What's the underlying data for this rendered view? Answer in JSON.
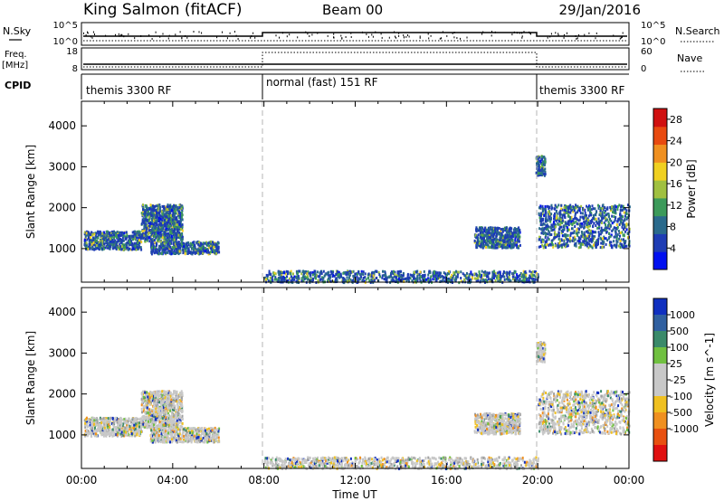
{
  "header": {
    "station": "King Salmon (fitACF)",
    "beam": "Beam 00",
    "date": "29/Jan/2016"
  },
  "status_panels": {
    "nsky_label": "N.Sky",
    "nsky_ticks": [
      "10^5",
      "10^0"
    ],
    "nsearch_label": "N.Search",
    "nsearch_ticks": [
      "10^5",
      "10^0"
    ],
    "freq_label": "Freq.",
    "freq_unit": "[MHz]",
    "freq_ticks": [
      "18",
      "8"
    ],
    "nave_label": "Nave",
    "nave_ticks": [
      "60",
      "0"
    ],
    "cpid_label": "CPID",
    "cpid_segments": [
      {
        "label": "themis 3300 RF",
        "start_hour": 0,
        "end_hour": 8
      },
      {
        "label": "normal (fast) 151 RF",
        "start_hour": 8,
        "end_hour": 20
      },
      {
        "label": "themis 3300 RF",
        "start_hour": 20,
        "end_hour": 24
      }
    ]
  },
  "x_axis": {
    "label": "Time UT",
    "ticks": [
      "00:00",
      "04:00",
      "08:00",
      "12:00",
      "16:00",
      "20:00",
      "00:00"
    ],
    "range_hours": [
      0,
      24
    ]
  },
  "chart_data": [
    {
      "type": "heatmap",
      "parameter": "Power",
      "ylabel": "Slant Range [km]",
      "yticks": [
        "1000",
        "2000",
        "3000",
        "4000"
      ],
      "ylim": [
        180,
        4600
      ],
      "colorbar": {
        "label": "Power [dB]",
        "ticks": [
          "4",
          "8",
          "12",
          "16",
          "20",
          "24",
          "28"
        ],
        "range": [
          0,
          30
        ],
        "colors": [
          "#0010f0",
          "#1e3cb4",
          "#2a6a8c",
          "#3c9a5a",
          "#a0c040",
          "#f0d020",
          "#f09020",
          "#e84a10",
          "#d01010"
        ]
      },
      "echo_regions": [
        {
          "hours": [
            0.1,
            2.6
          ],
          "range_km": [
            1000,
            1450
          ]
        },
        {
          "hours": [
            2.6,
            4.4
          ],
          "range_km": [
            1200,
            2100
          ]
        },
        {
          "hours": [
            3.0,
            6.0
          ],
          "range_km": [
            900,
            1200
          ]
        },
        {
          "hours": [
            8.0,
            20.0
          ],
          "range_km": [
            200,
            480
          ]
        },
        {
          "hours": [
            17.2,
            19.2
          ],
          "range_km": [
            1050,
            1550
          ]
        },
        {
          "hours": [
            19.9,
            20.3
          ],
          "range_km": [
            2800,
            3300
          ]
        },
        {
          "hours": [
            20.0,
            24.0
          ],
          "range_km": [
            1050,
            2100
          ]
        }
      ]
    },
    {
      "type": "heatmap",
      "parameter": "Velocity",
      "ylabel": "Slant Range [km]",
      "yticks": [
        "1000",
        "2000",
        "3000",
        "4000"
      ],
      "ylim": [
        180,
        4600
      ],
      "colorbar": {
        "label": "Velocity [m s^-1]",
        "ticks": [
          "1000",
          "500",
          "100",
          "25",
          "-25",
          "-100",
          "-500",
          "-1000"
        ],
        "colors": [
          "#1030c0",
          "#3060a0",
          "#3a8a6a",
          "#70c040",
          "#c8c8c8",
          "#c8c8c8",
          "#f0c020",
          "#f09020",
          "#e85010",
          "#e01010"
        ]
      },
      "echo_regions": [
        {
          "hours": [
            0.1,
            2.6
          ],
          "range_km": [
            1000,
            1450
          ]
        },
        {
          "hours": [
            2.6,
            4.4
          ],
          "range_km": [
            1200,
            2100
          ]
        },
        {
          "hours": [
            3.0,
            6.0
          ],
          "range_km": [
            850,
            1200
          ]
        },
        {
          "hours": [
            8.0,
            20.0
          ],
          "range_km": [
            200,
            480
          ]
        },
        {
          "hours": [
            17.2,
            19.2
          ],
          "range_km": [
            1050,
            1550
          ]
        },
        {
          "hours": [
            19.9,
            20.3
          ],
          "range_km": [
            2800,
            3300
          ]
        },
        {
          "hours": [
            20.0,
            24.0
          ],
          "range_km": [
            1050,
            2100
          ]
        }
      ]
    }
  ]
}
